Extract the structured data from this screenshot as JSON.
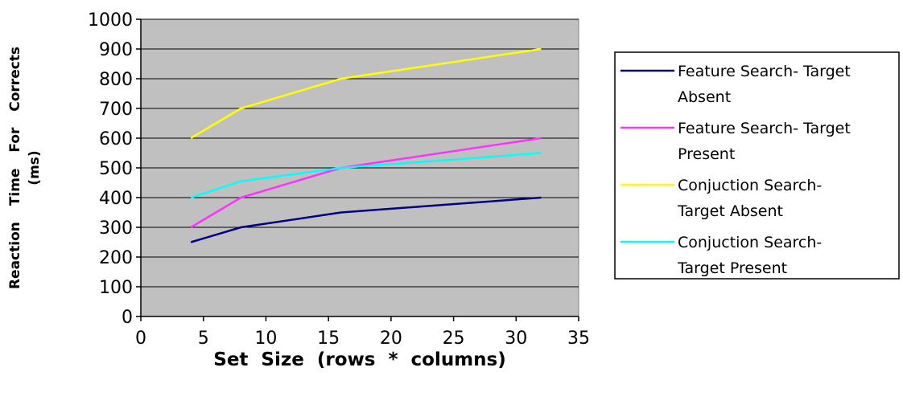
{
  "chart_data": {
    "type": "line",
    "title": "",
    "xlabel": "Set Size (rows * columns)",
    "ylabel_line1": "Reaction Time For Corrects",
    "ylabel_line2": "(ms)",
    "xlim": [
      0,
      35
    ],
    "ylim": [
      0,
      1000
    ],
    "xticks": [
      0,
      5,
      10,
      15,
      20,
      25,
      30,
      35
    ],
    "yticks": [
      0,
      100,
      200,
      300,
      400,
      500,
      600,
      700,
      800,
      900,
      1000
    ],
    "grid": "horizontal",
    "plot_background": "#c0c0c0",
    "legend_position": "right",
    "x": [
      4,
      8,
      16,
      32
    ],
    "series": [
      {
        "name": "Feature Search- Target Absent",
        "name_lines": [
          "Feature Search- Target",
          "Absent"
        ],
        "color": "#000080",
        "values": [
          250,
          300,
          350,
          400
        ]
      },
      {
        "name": "Feature Search- Target Present",
        "name_lines": [
          "Feature Search- Target",
          "Present"
        ],
        "color": "#ff33ff",
        "values": [
          300,
          400,
          500,
          600
        ]
      },
      {
        "name": "Conjuction Search- Target Absent",
        "name_lines": [
          "Conjuction Search-",
          "Target Absent"
        ],
        "color": "#ffff00",
        "values": [
          600,
          700,
          800,
          900
        ]
      },
      {
        "name": "Conjuction Search- Target Present",
        "name_lines": [
          "Conjuction Search-",
          "Target Present"
        ],
        "color": "#00ffff",
        "values": [
          400,
          455,
          500,
          550
        ]
      }
    ]
  }
}
